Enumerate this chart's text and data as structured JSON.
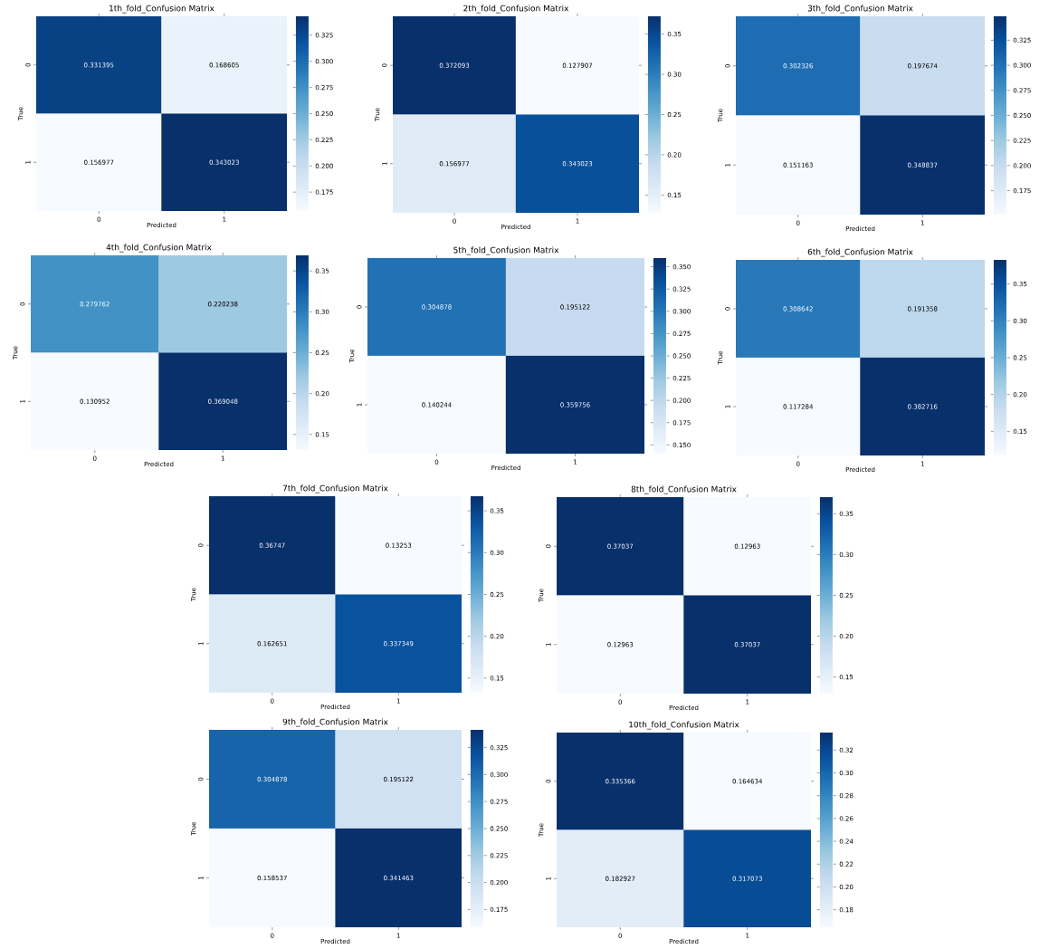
{
  "chart_data": [
    {
      "type": "heatmap",
      "title": "1th_fold_Confusion Matrix",
      "xlabel": "Predicted",
      "ylabel": "True",
      "categories": [
        "0",
        "1"
      ],
      "y_categories": [
        "0",
        "1"
      ],
      "cells": [
        [
          0.331395,
          0.168605
        ],
        [
          0.156977,
          0.343023
        ]
      ],
      "data_labels": true,
      "clim": [
        0.156977,
        0.343023
      ],
      "cticks": [
        {
          "value": 0.175,
          "label": "0.175"
        },
        {
          "value": 0.2,
          "label": "0.200"
        },
        {
          "value": 0.225,
          "label": "0.225"
        },
        {
          "value": 0.25,
          "label": "0.250"
        },
        {
          "value": 0.275,
          "label": "0.275"
        },
        {
          "value": 0.3,
          "label": "0.300"
        },
        {
          "value": 0.325,
          "label": "0.325"
        }
      ]
    },
    {
      "type": "heatmap",
      "title": "2th_fold_Confusion Matrix",
      "xlabel": "Predicted",
      "ylabel": "True",
      "categories": [
        "0",
        "1"
      ],
      "y_categories": [
        "0",
        "1"
      ],
      "cells": [
        [
          0.372093,
          0.127907
        ],
        [
          0.156977,
          0.343023
        ]
      ],
      "data_labels": true,
      "clim": [
        0.127907,
        0.372093
      ],
      "cticks": [
        {
          "value": 0.15,
          "label": "0.15"
        },
        {
          "value": 0.2,
          "label": "0.20"
        },
        {
          "value": 0.25,
          "label": "0.25"
        },
        {
          "value": 0.3,
          "label": "0.30"
        },
        {
          "value": 0.35,
          "label": "0.35"
        }
      ]
    },
    {
      "type": "heatmap",
      "title": "3th_fold_Confusion Matrix",
      "xlabel": "Predicted",
      "ylabel": "True",
      "categories": [
        "0",
        "1"
      ],
      "y_categories": [
        "0",
        "1"
      ],
      "cells": [
        [
          0.302326,
          0.197674
        ],
        [
          0.151163,
          0.348837
        ]
      ],
      "data_labels": true,
      "clim": [
        0.151163,
        0.348837
      ],
      "cticks": [
        {
          "value": 0.175,
          "label": "0.175"
        },
        {
          "value": 0.2,
          "label": "0.200"
        },
        {
          "value": 0.225,
          "label": "0.225"
        },
        {
          "value": 0.25,
          "label": "0.250"
        },
        {
          "value": 0.275,
          "label": "0.275"
        },
        {
          "value": 0.3,
          "label": "0.300"
        },
        {
          "value": 0.325,
          "label": "0.325"
        }
      ]
    },
    {
      "type": "heatmap",
      "title": "4th_fold_Confusion Matrix",
      "xlabel": "Predicted",
      "ylabel": "True",
      "categories": [
        "0",
        "1"
      ],
      "y_categories": [
        "0",
        "1"
      ],
      "cells": [
        [
          0.279762,
          0.220238
        ],
        [
          0.130952,
          0.369048
        ]
      ],
      "data_labels": true,
      "clim": [
        0.130952,
        0.369048
      ],
      "cticks": [
        {
          "value": 0.15,
          "label": "0.15"
        },
        {
          "value": 0.2,
          "label": "0.20"
        },
        {
          "value": 0.25,
          "label": "0.25"
        },
        {
          "value": 0.3,
          "label": "0.30"
        },
        {
          "value": 0.35,
          "label": "0.35"
        }
      ]
    },
    {
      "type": "heatmap",
      "title": "5th_fold_Confusion Matrix",
      "xlabel": "Predicted",
      "ylabel": "True",
      "categories": [
        "0",
        "1"
      ],
      "y_categories": [
        "0",
        "1"
      ],
      "cells": [
        [
          0.304878,
          0.195122
        ],
        [
          0.140244,
          0.359756
        ]
      ],
      "data_labels": true,
      "clim": [
        0.140244,
        0.359756
      ],
      "cticks": [
        {
          "value": 0.15,
          "label": "0.150"
        },
        {
          "value": 0.175,
          "label": "0.175"
        },
        {
          "value": 0.2,
          "label": "0.200"
        },
        {
          "value": 0.225,
          "label": "0.225"
        },
        {
          "value": 0.25,
          "label": "0.250"
        },
        {
          "value": 0.275,
          "label": "0.275"
        },
        {
          "value": 0.3,
          "label": "0.300"
        },
        {
          "value": 0.325,
          "label": "0.325"
        },
        {
          "value": 0.35,
          "label": "0.350"
        }
      ]
    },
    {
      "type": "heatmap",
      "title": "6th_fold_Confusion Matrix",
      "xlabel": "Predicted",
      "ylabel": "True",
      "categories": [
        "0",
        "1"
      ],
      "y_categories": [
        "0",
        "1"
      ],
      "cells": [
        [
          0.308642,
          0.191358
        ],
        [
          0.117284,
          0.382716
        ]
      ],
      "data_labels": true,
      "clim": [
        0.117284,
        0.382716
      ],
      "cticks": [
        {
          "value": 0.15,
          "label": "0.15"
        },
        {
          "value": 0.2,
          "label": "0.20"
        },
        {
          "value": 0.25,
          "label": "0.25"
        },
        {
          "value": 0.3,
          "label": "0.30"
        },
        {
          "value": 0.35,
          "label": "0.35"
        }
      ]
    },
    {
      "type": "heatmap",
      "title": "7th_fold_Confusion Matrix",
      "xlabel": "Predicted",
      "ylabel": "True",
      "categories": [
        "0",
        "1"
      ],
      "y_categories": [
        "0",
        "1"
      ],
      "cells": [
        [
          0.36747,
          0.13253
        ],
        [
          0.162651,
          0.337349
        ]
      ],
      "data_labels": true,
      "clim": [
        0.13253,
        0.36747
      ],
      "cticks": [
        {
          "value": 0.15,
          "label": "0.15"
        },
        {
          "value": 0.2,
          "label": "0.20"
        },
        {
          "value": 0.25,
          "label": "0.25"
        },
        {
          "value": 0.3,
          "label": "0.30"
        },
        {
          "value": 0.35,
          "label": "0.35"
        }
      ]
    },
    {
      "type": "heatmap",
      "title": "8th_fold_Confusion Matrix",
      "xlabel": "Predicted",
      "ylabel": "True",
      "categories": [
        "0",
        "1"
      ],
      "y_categories": [
        "0",
        "1"
      ],
      "cells": [
        [
          0.37037,
          0.12963
        ],
        [
          0.12963,
          0.37037
        ]
      ],
      "data_labels": true,
      "clim": [
        0.12963,
        0.37037
      ],
      "cticks": [
        {
          "value": 0.15,
          "label": "0.15"
        },
        {
          "value": 0.2,
          "label": "0.20"
        },
        {
          "value": 0.25,
          "label": "0.25"
        },
        {
          "value": 0.3,
          "label": "0.30"
        },
        {
          "value": 0.35,
          "label": "0.35"
        }
      ]
    },
    {
      "type": "heatmap",
      "title": "9th_fold_Confusion Matrix",
      "xlabel": "Predicted",
      "ylabel": "True",
      "categories": [
        "0",
        "1"
      ],
      "y_categories": [
        "0",
        "1"
      ],
      "cells": [
        [
          0.304878,
          0.195122
        ],
        [
          0.158537,
          0.341463
        ]
      ],
      "data_labels": true,
      "clim": [
        0.158537,
        0.341463
      ],
      "cticks": [
        {
          "value": 0.175,
          "label": "0.175"
        },
        {
          "value": 0.2,
          "label": "0.200"
        },
        {
          "value": 0.225,
          "label": "0.225"
        },
        {
          "value": 0.25,
          "label": "0.250"
        },
        {
          "value": 0.275,
          "label": "0.275"
        },
        {
          "value": 0.3,
          "label": "0.300"
        },
        {
          "value": 0.325,
          "label": "0.325"
        }
      ]
    },
    {
      "type": "heatmap",
      "title": "10th_fold_Confusion Matrix",
      "xlabel": "Predicted",
      "ylabel": "True",
      "categories": [
        "0",
        "1"
      ],
      "y_categories": [
        "0",
        "1"
      ],
      "cells": [
        [
          0.335366,
          0.164634
        ],
        [
          0.182927,
          0.317073
        ]
      ],
      "data_labels": true,
      "clim": [
        0.164634,
        0.335366
      ],
      "cticks": [
        {
          "value": 0.18,
          "label": "0.18"
        },
        {
          "value": 0.2,
          "label": "0.20"
        },
        {
          "value": 0.22,
          "label": "0.22"
        },
        {
          "value": 0.24,
          "label": "0.24"
        },
        {
          "value": 0.26,
          "label": "0.26"
        },
        {
          "value": 0.28,
          "label": "0.28"
        },
        {
          "value": 0.3,
          "label": "0.30"
        },
        {
          "value": 0.32,
          "label": "0.32"
        }
      ]
    }
  ]
}
